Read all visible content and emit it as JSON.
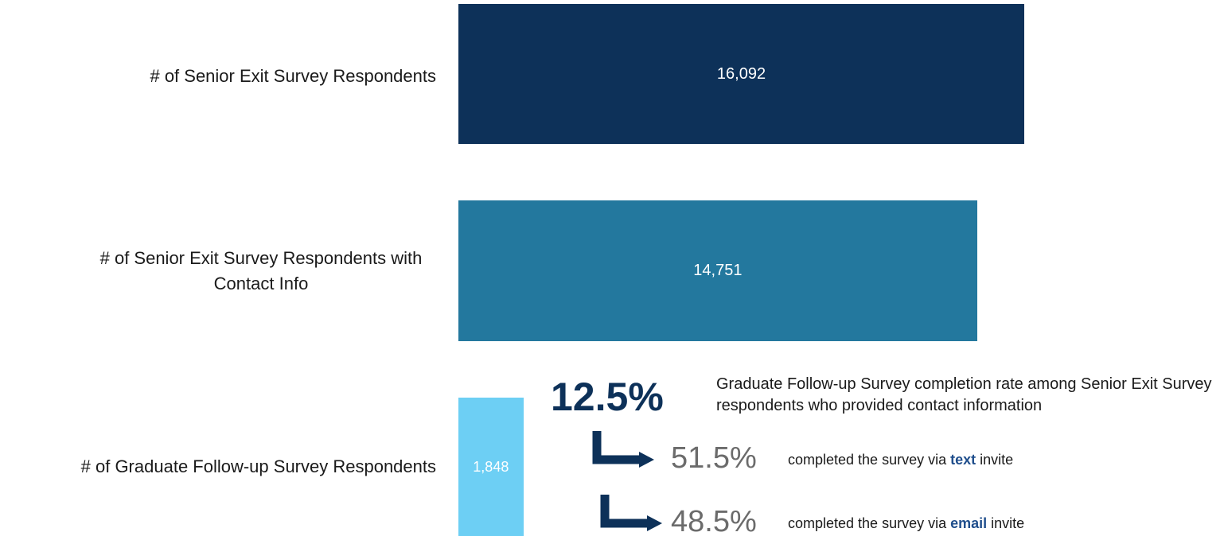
{
  "chart_data": {
    "type": "bar",
    "orientation": "horizontal",
    "categories": [
      "# of Senior Exit Survey Respondents",
      "# of Senior Exit Survey Respondents with Contact Info",
      "# of Graduate Follow-up Survey Respondents"
    ],
    "values": [
      16092,
      14751,
      1848
    ],
    "value_labels": [
      "16,092",
      "14,751",
      "1,848"
    ],
    "colors": [
      "#0d3159",
      "#23789e",
      "#6dcff4"
    ]
  },
  "annotations": {
    "rate": "12.5%",
    "rate_text": "Graduate Follow-up Survey completion rate among Senior Exit Survey respondents who provided contact information",
    "breakdown": [
      {
        "percent": "51.5%",
        "prefix": "completed the survey via",
        "method": "text",
        "suffix": "invite"
      },
      {
        "percent": "48.5%",
        "prefix": "completed the survey via",
        "method": "email",
        "suffix": "invite"
      }
    ]
  }
}
